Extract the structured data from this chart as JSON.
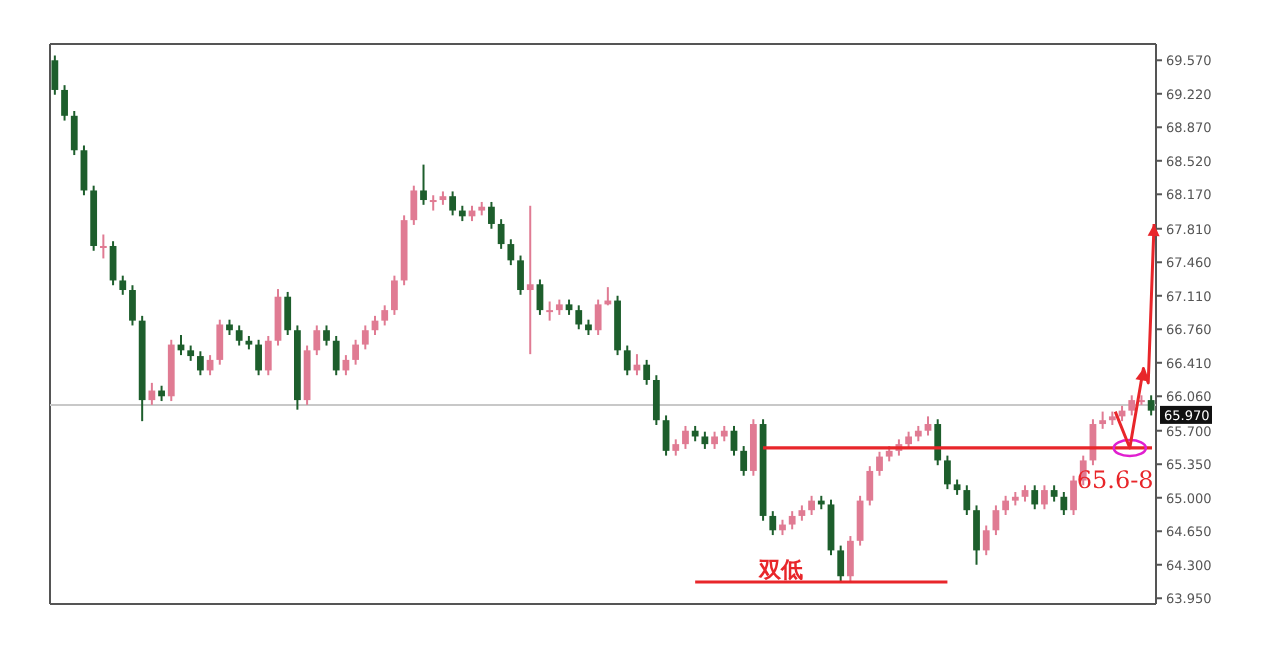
{
  "chart_data": {
    "type": "candlestick",
    "categories": [
      null,
      null,
      null,
      null,
      null,
      null,
      null,
      null,
      null,
      null,
      null,
      null,
      null,
      null,
      null,
      null,
      null,
      null,
      null,
      null,
      null,
      null,
      null,
      null,
      null,
      null,
      null,
      null,
      null,
      null,
      null,
      null,
      null,
      null,
      null,
      null,
      null,
      null,
      null,
      null,
      null,
      null,
      null,
      null,
      null,
      null,
      null,
      null,
      null,
      null,
      null,
      null,
      null,
      null,
      null,
      null,
      null,
      null,
      null,
      null,
      null,
      null,
      null,
      null,
      null,
      null,
      null,
      null,
      null,
      null,
      null,
      null,
      null,
      null,
      null,
      null,
      null,
      null,
      null,
      null,
      null,
      null,
      null,
      null,
      null,
      null,
      null,
      null,
      null,
      null,
      null,
      null,
      null,
      null,
      null,
      null,
      null,
      null,
      null,
      null,
      null,
      null,
      null,
      null,
      null,
      null,
      null,
      null,
      null,
      null,
      null,
      null,
      null,
      null
    ],
    "ohlc": [
      [
        69.57,
        69.62,
        69.21,
        69.26
      ],
      [
        69.26,
        69.31,
        68.94,
        68.99
      ],
      [
        68.99,
        69.04,
        68.58,
        68.63
      ],
      [
        68.63,
        68.68,
        68.16,
        68.21
      ],
      [
        68.21,
        68.26,
        67.58,
        67.63
      ],
      [
        67.63,
        67.75,
        67.5,
        67.63
      ],
      [
        67.63,
        67.68,
        67.22,
        67.27
      ],
      [
        67.27,
        67.32,
        67.12,
        67.17
      ],
      [
        67.17,
        67.22,
        66.8,
        66.85
      ],
      [
        66.85,
        66.9,
        65.8,
        66.02
      ],
      [
        66.02,
        66.2,
        65.97,
        66.12
      ],
      [
        66.12,
        66.17,
        66.01,
        66.06
      ],
      [
        66.06,
        66.65,
        66.01,
        66.6
      ],
      [
        66.6,
        66.7,
        66.49,
        66.54
      ],
      [
        66.54,
        66.59,
        66.43,
        66.48
      ],
      [
        66.48,
        66.53,
        66.28,
        66.33
      ],
      [
        66.33,
        66.49,
        66.28,
        66.44
      ],
      [
        66.44,
        66.86,
        66.39,
        66.81
      ],
      [
        66.81,
        66.86,
        66.7,
        66.75
      ],
      [
        66.75,
        66.8,
        66.59,
        66.64
      ],
      [
        66.64,
        66.69,
        66.55,
        66.6
      ],
      [
        66.6,
        66.65,
        66.28,
        66.33
      ],
      [
        66.33,
        66.69,
        66.28,
        66.64
      ],
      [
        66.64,
        67.18,
        66.59,
        67.1
      ],
      [
        67.1,
        67.15,
        66.7,
        66.75
      ],
      [
        66.75,
        66.8,
        65.92,
        66.02
      ],
      [
        66.02,
        66.59,
        65.97,
        66.54
      ],
      [
        66.54,
        66.8,
        66.49,
        66.75
      ],
      [
        66.75,
        66.8,
        66.59,
        66.64
      ],
      [
        66.64,
        66.69,
        66.28,
        66.33
      ],
      [
        66.33,
        66.49,
        66.28,
        66.44
      ],
      [
        66.44,
        66.65,
        66.39,
        66.6
      ],
      [
        66.6,
        66.8,
        66.55,
        66.75
      ],
      [
        66.75,
        66.9,
        66.7,
        66.85
      ],
      [
        66.85,
        67.01,
        66.8,
        66.96
      ],
      [
        66.96,
        67.32,
        66.91,
        67.27
      ],
      [
        67.27,
        67.95,
        67.22,
        67.9
      ],
      [
        67.9,
        68.26,
        67.85,
        68.21
      ],
      [
        68.21,
        68.48,
        68.06,
        68.11
      ],
      [
        68.11,
        68.16,
        68.0,
        68.11
      ],
      [
        68.11,
        68.2,
        68.06,
        68.15
      ],
      [
        68.15,
        68.2,
        67.95,
        68.0
      ],
      [
        68.0,
        68.05,
        67.89,
        67.94
      ],
      [
        67.94,
        68.05,
        67.89,
        68.0
      ],
      [
        68.0,
        68.09,
        67.95,
        68.04
      ],
      [
        68.04,
        68.09,
        67.81,
        67.86
      ],
      [
        67.86,
        67.91,
        67.6,
        67.65
      ],
      [
        67.65,
        67.7,
        67.43,
        67.48
      ],
      [
        67.48,
        67.53,
        67.12,
        67.17
      ],
      [
        67.17,
        68.05,
        66.5,
        67.23
      ],
      [
        67.23,
        67.28,
        66.91,
        66.96
      ],
      [
        66.96,
        67.05,
        66.85,
        66.96
      ],
      [
        66.96,
        67.07,
        66.91,
        67.02
      ],
      [
        67.02,
        67.07,
        66.91,
        66.96
      ],
      [
        66.96,
        67.01,
        66.76,
        66.81
      ],
      [
        66.81,
        66.86,
        66.7,
        66.75
      ],
      [
        66.75,
        67.07,
        66.7,
        67.02
      ],
      [
        67.02,
        67.2,
        67.01,
        67.06
      ],
      [
        67.06,
        67.11,
        66.49,
        66.54
      ],
      [
        66.54,
        66.59,
        66.28,
        66.33
      ],
      [
        66.33,
        66.5,
        66.28,
        66.39
      ],
      [
        66.39,
        66.44,
        66.18,
        66.23
      ],
      [
        66.23,
        66.28,
        65.76,
        65.81
      ],
      [
        65.81,
        65.86,
        65.44,
        65.49
      ],
      [
        65.49,
        65.61,
        65.44,
        65.56
      ],
      [
        65.56,
        65.75,
        65.51,
        65.7
      ],
      [
        65.7,
        65.75,
        65.59,
        65.64
      ],
      [
        65.64,
        65.69,
        65.51,
        65.56
      ],
      [
        65.56,
        65.69,
        65.51,
        65.64
      ],
      [
        65.64,
        65.75,
        65.59,
        65.7
      ],
      [
        65.7,
        65.75,
        65.44,
        65.49
      ],
      [
        65.49,
        65.54,
        65.23,
        65.28
      ],
      [
        65.28,
        65.82,
        65.23,
        65.77
      ],
      [
        65.77,
        65.82,
        64.76,
        64.81
      ],
      [
        64.81,
        64.86,
        64.61,
        64.66
      ],
      [
        64.66,
        64.77,
        64.61,
        64.72
      ],
      [
        64.72,
        64.86,
        64.67,
        64.81
      ],
      [
        64.81,
        64.92,
        64.76,
        64.87
      ],
      [
        64.87,
        65.02,
        64.82,
        64.97
      ],
      [
        64.97,
        65.02,
        64.88,
        64.93
      ],
      [
        64.93,
        64.98,
        64.4,
        64.45
      ],
      [
        64.45,
        64.5,
        64.13,
        64.18
      ],
      [
        64.18,
        64.6,
        64.13,
        64.55
      ],
      [
        64.55,
        65.02,
        64.5,
        64.97
      ],
      [
        64.97,
        65.33,
        64.92,
        65.28
      ],
      [
        65.28,
        65.48,
        65.23,
        65.43
      ],
      [
        65.43,
        65.54,
        65.38,
        65.49
      ],
      [
        65.49,
        65.61,
        65.44,
        65.56
      ],
      [
        65.56,
        65.69,
        65.51,
        65.64
      ],
      [
        65.64,
        65.75,
        65.59,
        65.7
      ],
      [
        65.7,
        65.85,
        65.65,
        65.77
      ],
      [
        65.77,
        65.82,
        65.34,
        65.39
      ],
      [
        65.39,
        65.44,
        65.09,
        65.14
      ],
      [
        65.14,
        65.19,
        65.03,
        65.08
      ],
      [
        65.08,
        65.13,
        64.82,
        64.87
      ],
      [
        64.87,
        64.92,
        64.3,
        64.45
      ],
      [
        64.45,
        64.71,
        64.4,
        64.66
      ],
      [
        64.66,
        64.92,
        64.61,
        64.87
      ],
      [
        64.87,
        65.02,
        64.82,
        64.97
      ],
      [
        64.97,
        65.06,
        64.92,
        65.01
      ],
      [
        65.01,
        65.13,
        64.96,
        65.08
      ],
      [
        65.08,
        65.13,
        64.88,
        64.93
      ],
      [
        64.93,
        65.13,
        64.88,
        65.08
      ],
      [
        65.08,
        65.13,
        64.96,
        65.01
      ],
      [
        65.01,
        65.06,
        64.82,
        64.87
      ],
      [
        64.87,
        65.23,
        64.82,
        65.18
      ],
      [
        65.18,
        65.44,
        65.13,
        65.39
      ],
      [
        65.39,
        65.82,
        65.34,
        65.77
      ],
      [
        65.77,
        65.9,
        65.72,
        65.81
      ],
      [
        65.81,
        65.9,
        65.76,
        65.85
      ],
      [
        65.85,
        65.96,
        65.8,
        65.91
      ],
      [
        65.91,
        66.07,
        65.86,
        66.02
      ],
      [
        66.02,
        66.07,
        65.97,
        66.02
      ],
      [
        66.02,
        66.07,
        65.86,
        65.91
      ]
    ],
    "colors": [
      "#1d5e2c",
      "#1d5e2c",
      "#1d5e2c",
      "#1d5e2c",
      "#1d5e2c",
      "#e07b93",
      "#1d5e2c",
      "#1d5e2c",
      "#1d5e2c",
      "#1d5e2c",
      "#e07b93",
      "#1d5e2c",
      "#e07b93",
      "#1d5e2c",
      "#1d5e2c",
      "#1d5e2c",
      "#e07b93",
      "#e07b93",
      "#1d5e2c",
      "#1d5e2c",
      "#1d5e2c",
      "#1d5e2c",
      "#e07b93",
      "#e07b93",
      "#1d5e2c",
      "#1d5e2c",
      "#e07b93",
      "#e07b93",
      "#1d5e2c",
      "#1d5e2c",
      "#e07b93",
      "#e07b93",
      "#e07b93",
      "#e07b93",
      "#e07b93",
      "#e07b93",
      "#e07b93",
      "#e07b93",
      "#1d5e2c",
      "#e07b93",
      "#e07b93",
      "#1d5e2c",
      "#1d5e2c",
      "#e07b93",
      "#e07b93",
      "#1d5e2c",
      "#1d5e2c",
      "#1d5e2c",
      "#1d5e2c",
      "#e07b93",
      "#1d5e2c",
      "#e07b93",
      "#e07b93",
      "#1d5e2c",
      "#1d5e2c",
      "#1d5e2c",
      "#e07b93",
      "#e07b93",
      "#1d5e2c",
      "#1d5e2c",
      "#e07b93",
      "#1d5e2c",
      "#1d5e2c",
      "#1d5e2c",
      "#e07b93",
      "#e07b93",
      "#1d5e2c",
      "#1d5e2c",
      "#e07b93",
      "#e07b93",
      "#1d5e2c",
      "#1d5e2c",
      "#e07b93",
      "#1d5e2c",
      "#1d5e2c",
      "#e07b93",
      "#e07b93",
      "#e07b93",
      "#e07b93",
      "#1d5e2c",
      "#1d5e2c",
      "#1d5e2c",
      "#e07b93",
      "#e07b93",
      "#e07b93",
      "#e07b93",
      "#e07b93",
      "#e07b93",
      "#e07b93",
      "#e07b93",
      "#e07b93",
      "#1d5e2c",
      "#1d5e2c",
      "#1d5e2c",
      "#1d5e2c",
      "#1d5e2c",
      "#e07b93",
      "#e07b93",
      "#e07b93",
      "#e07b93",
      "#e07b93",
      "#1d5e2c",
      "#e07b93",
      "#1d5e2c",
      "#1d5e2c",
      "#e07b93",
      "#e07b93",
      "#e07b93",
      "#e07b93",
      "#e07b93",
      "#e07b93",
      "#e07b93",
      "#e07b93",
      "#1d5e2c"
    ],
    "ylim": [
      63.89,
      69.74
    ],
    "yticks": [
      {
        "value": 69.57,
        "label": "69.570"
      },
      {
        "value": 69.22,
        "label": "69.220"
      },
      {
        "value": 68.87,
        "label": "68.870"
      },
      {
        "value": 68.52,
        "label": "68.520"
      },
      {
        "value": 68.17,
        "label": "68.170"
      },
      {
        "value": 67.81,
        "label": "67.810"
      },
      {
        "value": 67.46,
        "label": "67.460"
      },
      {
        "value": 67.11,
        "label": "67.110"
      },
      {
        "value": 66.76,
        "label": "66.760"
      },
      {
        "value": 66.41,
        "label": "66.410"
      },
      {
        "value": 66.06,
        "label": "66.060"
      },
      {
        "value": 65.7,
        "label": "65.700"
      },
      {
        "value": 65.35,
        "label": "65.350"
      },
      {
        "value": 65.0,
        "label": "65.000"
      },
      {
        "value": 64.65,
        "label": "64.650"
      },
      {
        "value": 64.3,
        "label": "64.300"
      },
      {
        "value": 63.95,
        "label": "63.950"
      }
    ],
    "ref_lines": [
      {
        "axis": "y",
        "value": 65.97,
        "label": "65.970",
        "color": "#c8c8c8"
      }
    ],
    "annotations": [
      "双低",
      "65.6-8"
    ],
    "grid": false
  }
}
